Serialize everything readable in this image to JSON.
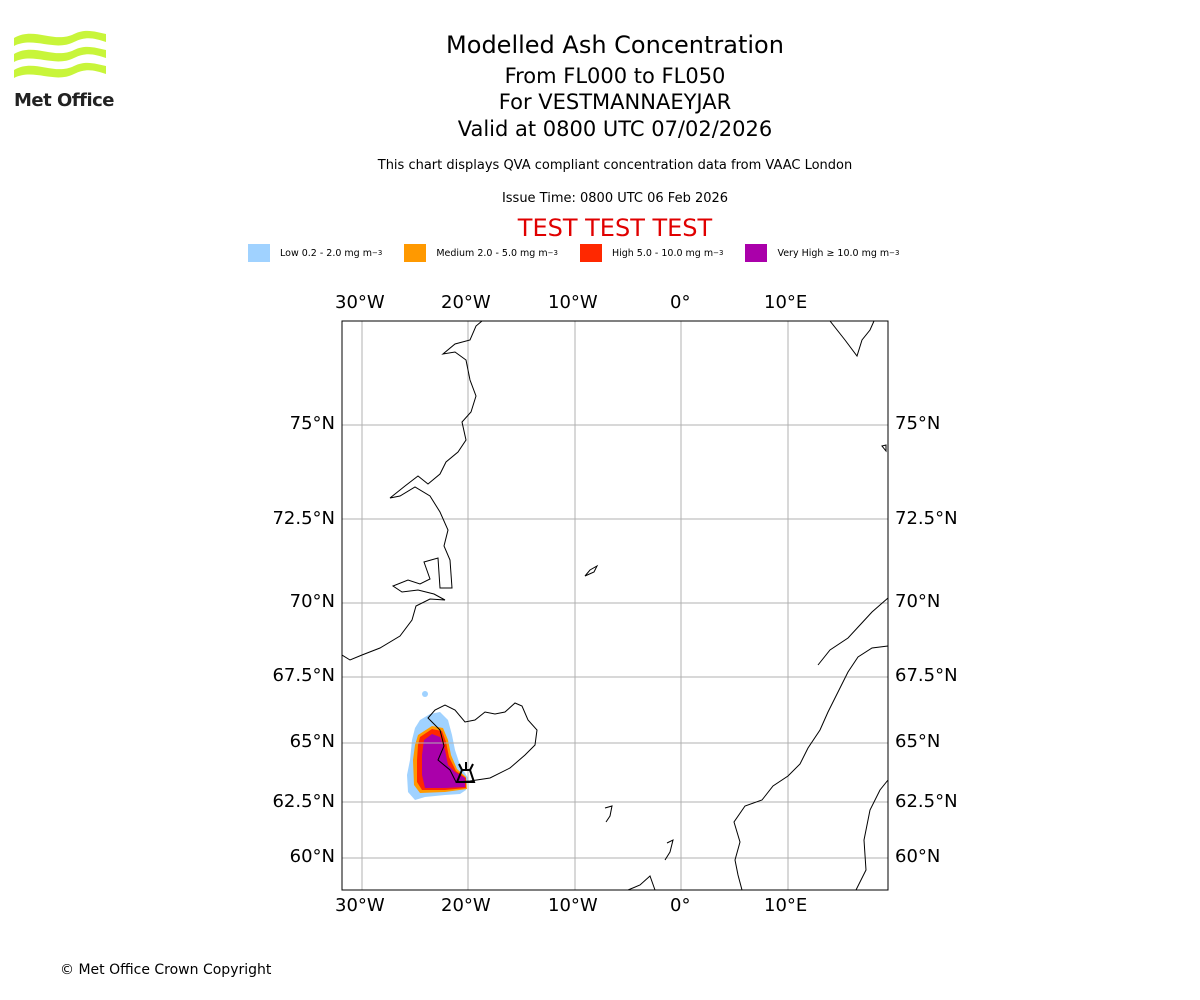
{
  "logo": {
    "text": "Met Office",
    "color": "#c8f53a"
  },
  "header": {
    "title": "Modelled Ash Concentration",
    "levels": "From FL000 to FL050",
    "volcano": "For VESTMANNAEYJAR",
    "valid": "Valid at 0800 UTC 07/02/2026",
    "subtitle": "This chart displays QVA compliant concentration data from VAAC London",
    "issue_time": "Issue Time: 0800 UTC 06 Feb 2026",
    "test_banner": "TEST TEST TEST"
  },
  "legend": [
    {
      "label": "Low 0.2 - 2.0 mg m",
      "unit_sup": "−3",
      "color": "#a0d2ff"
    },
    {
      "label": "Medium 2.0 - 5.0 mg m",
      "unit_sup": "−3",
      "color": "#ff9900"
    },
    {
      "label": "High 5.0 - 10.0 mg m",
      "unit_sup": "−3",
      "color": "#ff2800"
    },
    {
      "label": "Very High ≥ 10.0 mg m",
      "unit_sup": "−3",
      "color": "#aa00aa"
    }
  ],
  "map": {
    "lon_ticks": [
      "30°W",
      "20°W",
      "10°W",
      "0°",
      "10°E"
    ],
    "lat_ticks": [
      "75°N",
      "72.5°N",
      "70°N",
      "67.5°N",
      "65°N",
      "62.5°N",
      "60°N"
    ]
  },
  "footer": {
    "copyright": "© Met Office Crown Copyright"
  }
}
